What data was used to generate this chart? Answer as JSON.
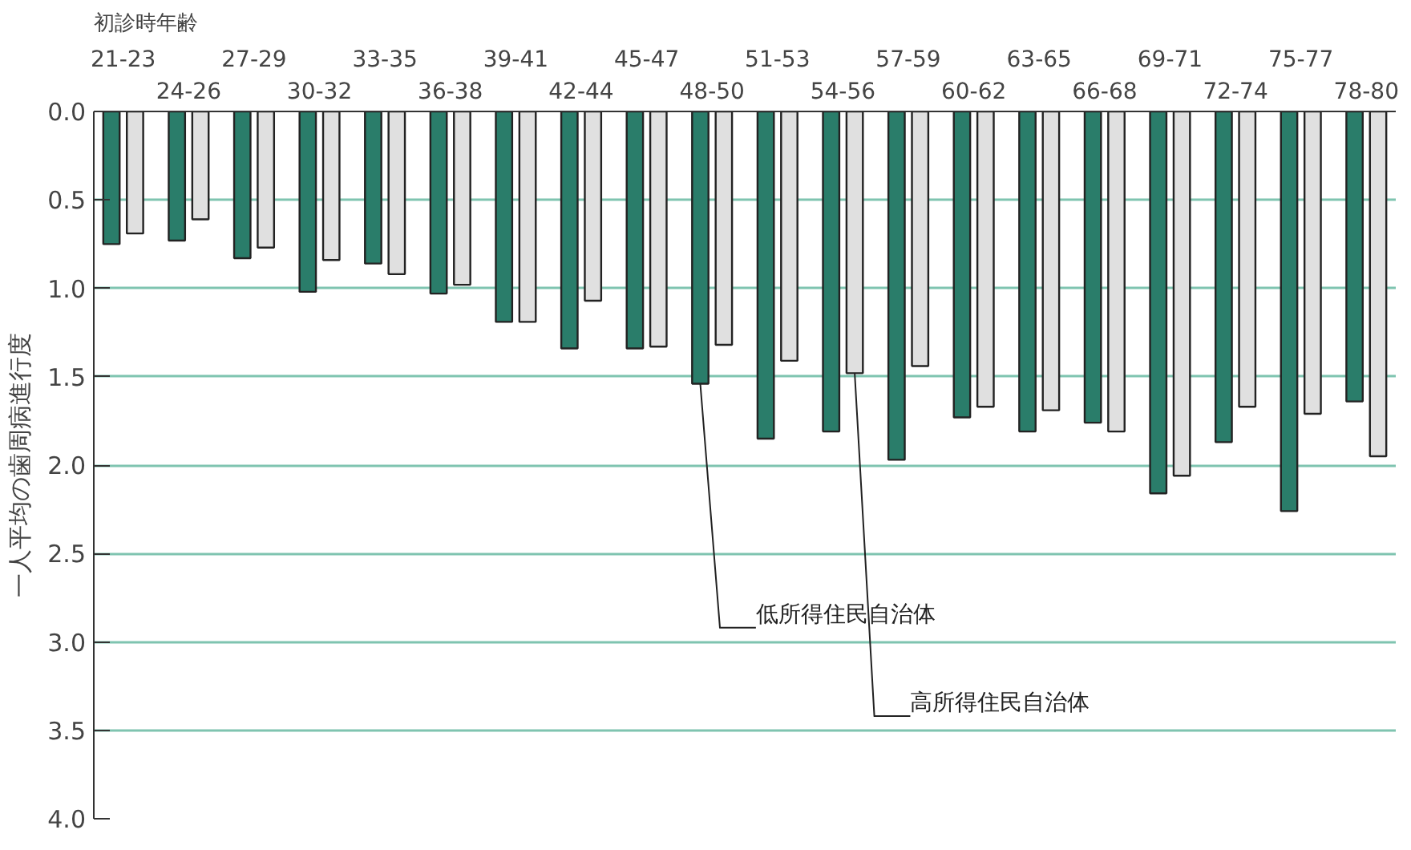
{
  "chart_data": {
    "type": "bar",
    "xlabel": "初診時年齢",
    "ylabel": "一人平均の歯周病進行度",
    "categories": [
      "21-23",
      "24-26",
      "27-29",
      "30-32",
      "33-35",
      "36-38",
      "39-41",
      "42-44",
      "45-47",
      "48-50",
      "51-53",
      "54-56",
      "57-59",
      "60-62",
      "63-65",
      "66-68",
      "69-71",
      "72-74",
      "75-77",
      "78-80"
    ],
    "series": [
      {
        "name": "低所得住民自治体",
        "color": "#2a7d6a",
        "values": [
          0.75,
          0.73,
          0.83,
          1.02,
          0.86,
          1.03,
          1.19,
          1.34,
          1.34,
          1.54,
          1.85,
          1.81,
          1.97,
          1.73,
          1.81,
          1.76,
          2.16,
          1.87,
          2.26,
          1.64
        ]
      },
      {
        "name": "高所得住民自治体",
        "color": "#e0e0e0",
        "values": [
          0.69,
          0.61,
          0.77,
          0.84,
          0.92,
          0.98,
          1.19,
          1.07,
          1.33,
          1.32,
          1.41,
          1.48,
          1.44,
          1.67,
          1.69,
          1.81,
          2.06,
          1.67,
          1.71,
          1.95
        ]
      }
    ],
    "ylim": [
      4.0,
      0.0
    ],
    "yticks": [
      {
        "value": 0,
        "label": "0.0"
      },
      0.5,
      {
        "value": 1,
        "label": "1.0"
      },
      1.5,
      {
        "value": 2,
        "label": "2.0"
      },
      2.5,
      {
        "value": 3,
        "label": "3.0"
      },
      3.5,
      {
        "value": 4,
        "label": "4.0"
      }
    ],
    "grid": "y"
  }
}
